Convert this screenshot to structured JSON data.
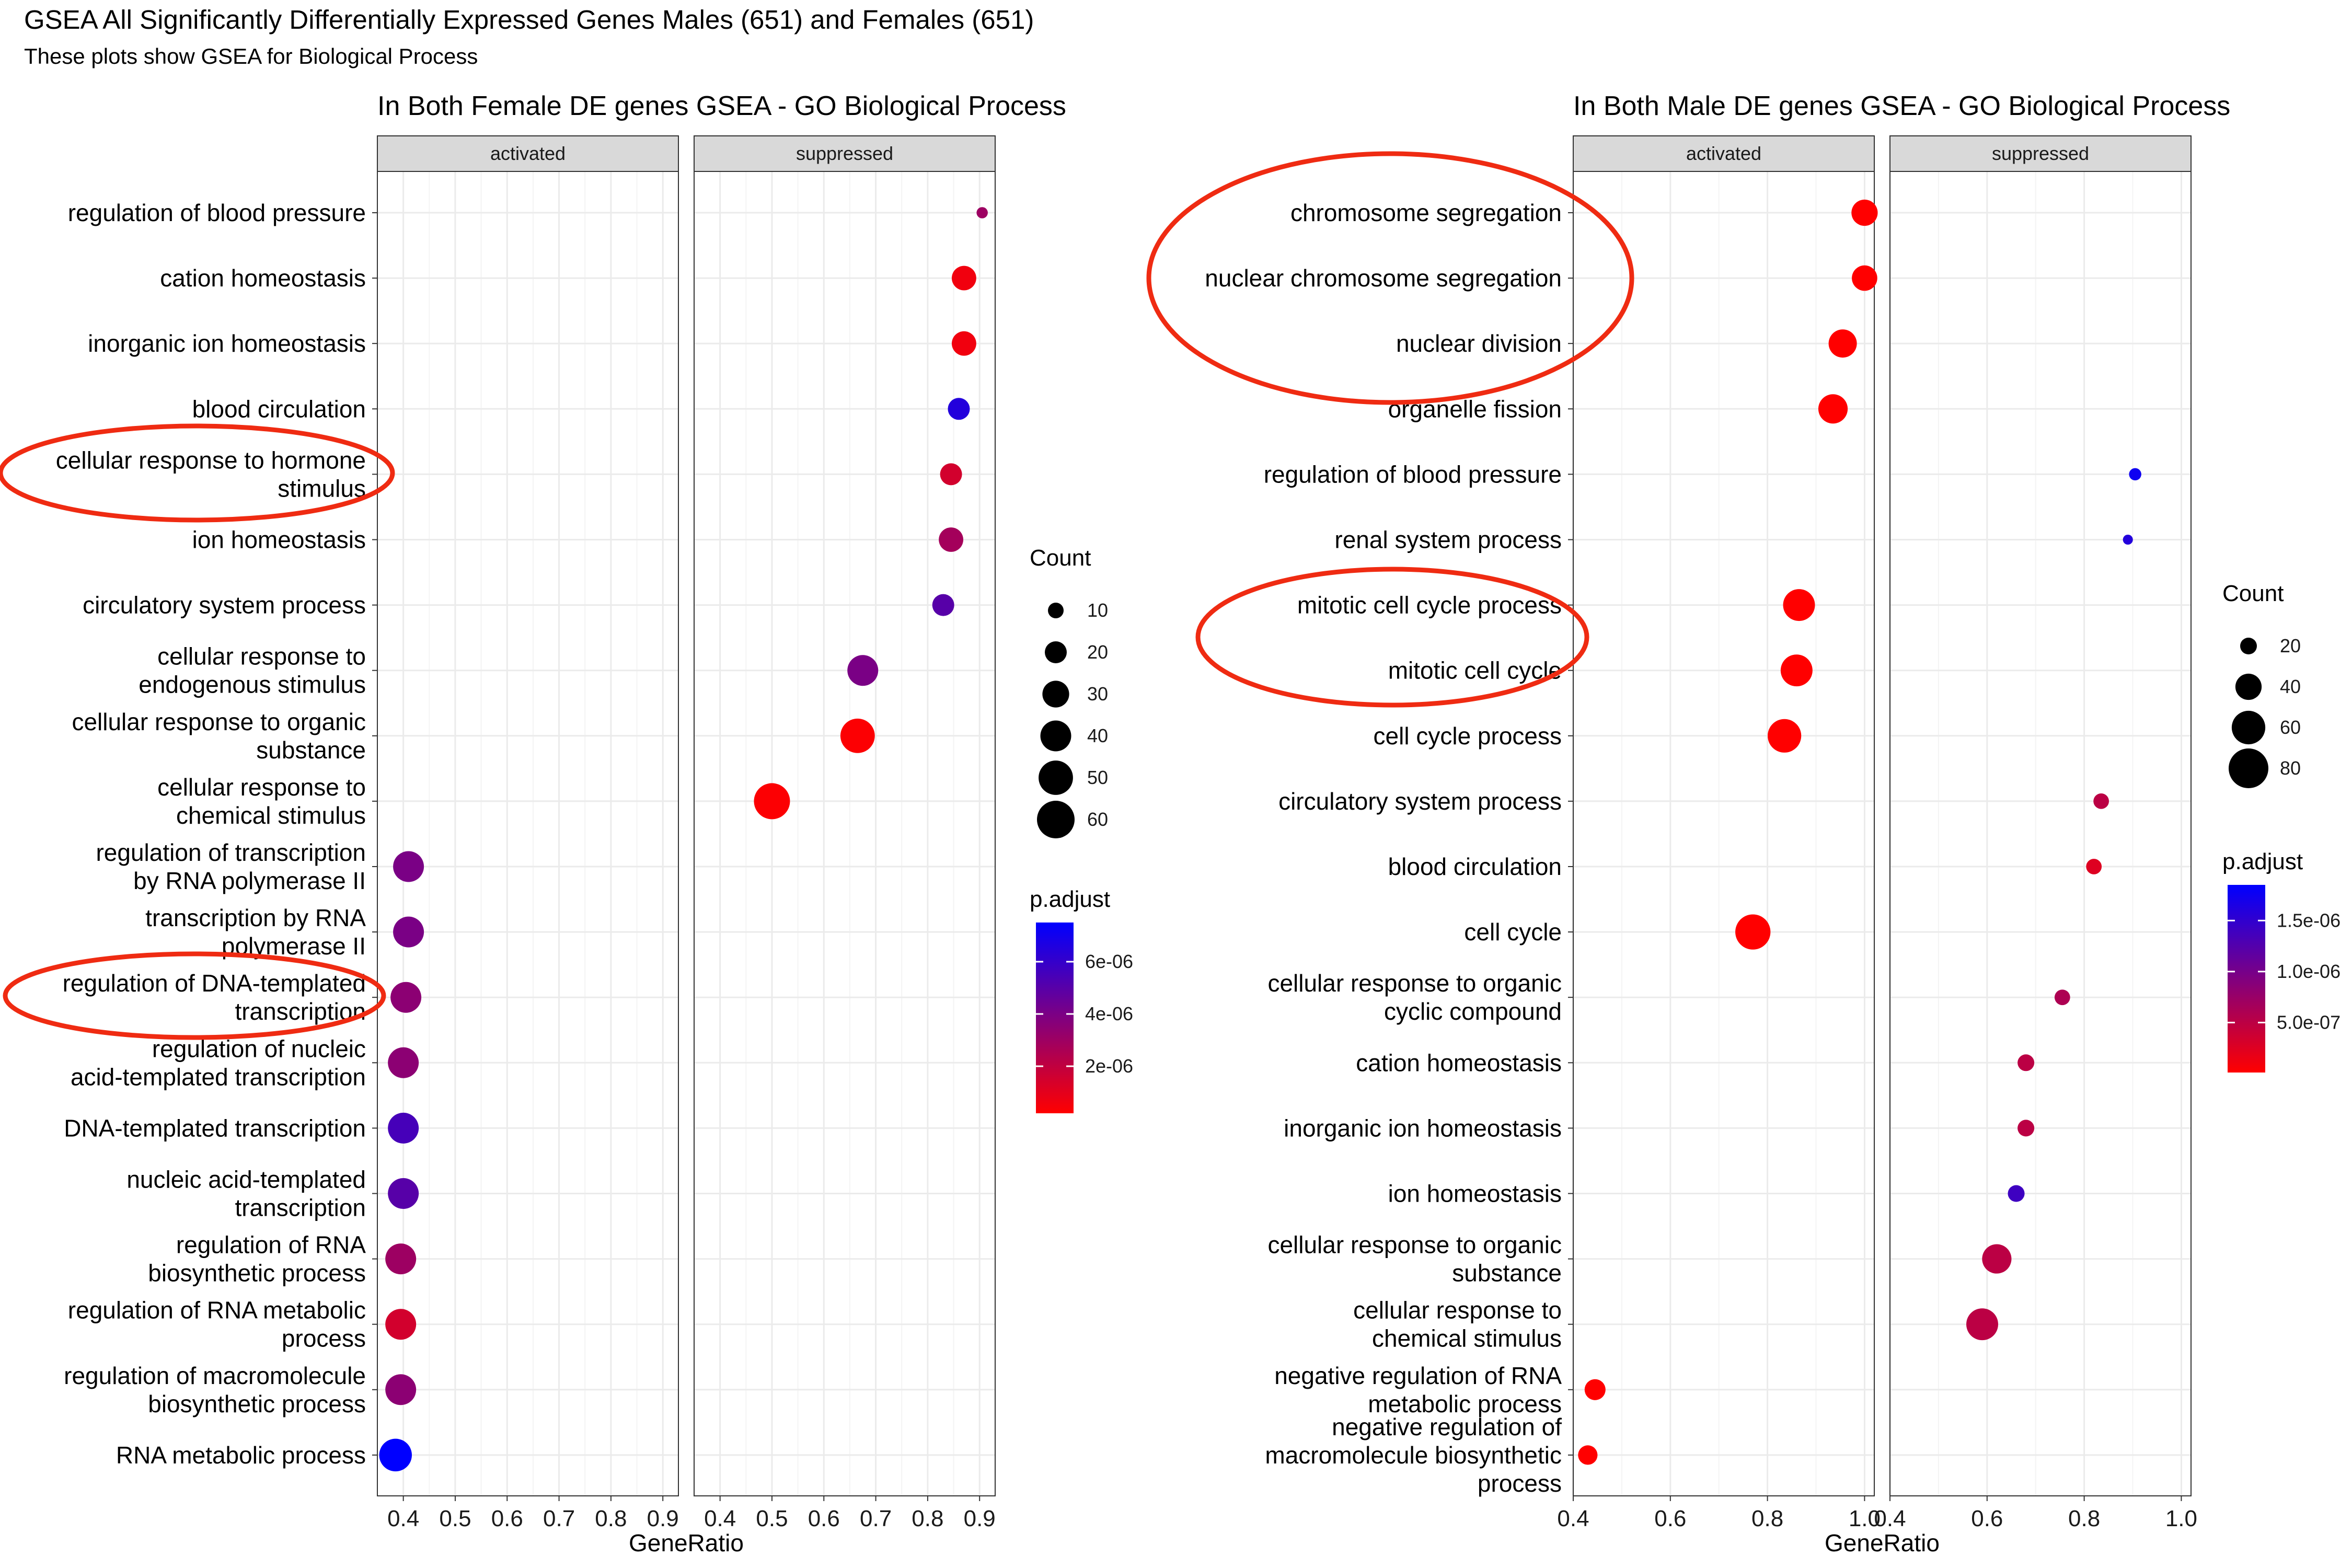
{
  "header": {
    "title": "GSEA All Significantly Differentially Expressed Genes Males (651) and Females (651)",
    "subtitle": "These plots show GSEA for Biological Process"
  },
  "chart_data": [
    {
      "type": "scatter",
      "title": "In Both Female DE genes GSEA - GO Biological Process",
      "xlabel": "GeneRatio",
      "ylabel": "",
      "facets": [
        "activated",
        "suppressed"
      ],
      "xlim": [
        0.35,
        0.93
      ],
      "xticks": [
        0.4,
        0.5,
        0.6,
        0.7,
        0.8,
        0.9
      ],
      "xtick_labels": [
        "0.4",
        "0.5",
        "0.6",
        "0.7",
        "0.8",
        "0.9"
      ],
      "grid": true,
      "legend_position": "right",
      "categories": [
        "regulation of blood pressure",
        "cation homeostasis",
        "inorganic ion homeostasis",
        "blood circulation",
        "cellular response to hormone\nstimulus",
        "ion homeostasis",
        "circulatory system process",
        "cellular response to\nendogenous stimulus",
        "cellular response to organic\nsubstance",
        "cellular response to\nchemical stimulus",
        "regulation of transcription\nby RNA polymerase II",
        "transcription by RNA\npolymerase II",
        "regulation of DNA-templated\ntranscription",
        "regulation of nucleic\nacid-templated transcription",
        "DNA-templated transcription",
        "nucleic acid-templated\ntranscription",
        "regulation of RNA\nbiosynthetic process",
        "regulation of RNA metabolic\nprocess",
        "regulation of macromolecule\nbiosynthetic process",
        "RNA metabolic process"
      ],
      "points": [
        {
          "term": 0,
          "facet": "suppressed",
          "x": 0.905,
          "count": 5,
          "p_adjust": 3e-06
        },
        {
          "term": 1,
          "facet": "suppressed",
          "x": 0.87,
          "count": 25,
          "p_adjust": 6e-07
        },
        {
          "term": 2,
          "facet": "suppressed",
          "x": 0.87,
          "count": 25,
          "p_adjust": 6e-07
        },
        {
          "term": 3,
          "facet": "suppressed",
          "x": 0.86,
          "count": 20,
          "p_adjust": 6.5e-06
        },
        {
          "term": 4,
          "facet": "suppressed",
          "x": 0.845,
          "count": 20,
          "p_adjust": 1.5e-06
        },
        {
          "term": 5,
          "facet": "suppressed",
          "x": 0.845,
          "count": 25,
          "p_adjust": 2.8e-06
        },
        {
          "term": 6,
          "facet": "suppressed",
          "x": 0.83,
          "count": 20,
          "p_adjust": 5e-06
        },
        {
          "term": 7,
          "facet": "suppressed",
          "x": 0.675,
          "count": 40,
          "p_adjust": 4e-06
        },
        {
          "term": 8,
          "facet": "suppressed",
          "x": 0.665,
          "count": 50,
          "p_adjust": 3e-07
        },
        {
          "term": 9,
          "facet": "suppressed",
          "x": 0.5,
          "count": 55,
          "p_adjust": 3e-07
        },
        {
          "term": 10,
          "facet": "activated",
          "x": 0.41,
          "count": 40,
          "p_adjust": 4e-06
        },
        {
          "term": 11,
          "facet": "activated",
          "x": 0.41,
          "count": 40,
          "p_adjust": 4e-06
        },
        {
          "term": 12,
          "facet": "activated",
          "x": 0.405,
          "count": 40,
          "p_adjust": 3.5e-06
        },
        {
          "term": 13,
          "facet": "activated",
          "x": 0.4,
          "count": 40,
          "p_adjust": 3.5e-06
        },
        {
          "term": 14,
          "facet": "activated",
          "x": 0.4,
          "count": 40,
          "p_adjust": 5.5e-06
        },
        {
          "term": 15,
          "facet": "activated",
          "x": 0.4,
          "count": 40,
          "p_adjust": 5e-06
        },
        {
          "term": 16,
          "facet": "activated",
          "x": 0.395,
          "count": 40,
          "p_adjust": 3e-06
        },
        {
          "term": 17,
          "facet": "activated",
          "x": 0.395,
          "count": 40,
          "p_adjust": 1.5e-06
        },
        {
          "term": 18,
          "facet": "activated",
          "x": 0.395,
          "count": 40,
          "p_adjust": 3.5e-06
        },
        {
          "term": 19,
          "facet": "activated",
          "x": 0.385,
          "count": 45,
          "p_adjust": 7.5e-06
        }
      ],
      "count_legend": {
        "title": "Count",
        "values": [
          10,
          20,
          30,
          40,
          50,
          60
        ],
        "labels": [
          "10",
          "20",
          "30",
          "40",
          "50",
          "60"
        ]
      },
      "color_legend": {
        "title": "p.adjust",
        "range": [
          2e-07,
          7.5e-06
        ],
        "breaks": [
          6e-06,
          4e-06,
          2e-06
        ],
        "labels": [
          "6e-06",
          "4e-06",
          "2e-06"
        ],
        "low_color": "#ff0000",
        "high_color": "#0000ff"
      },
      "highlight_ellipses": [
        {
          "term": 4,
          "color": "#ef2b12",
          "note": "circled label"
        },
        {
          "term": 12,
          "color": "#ef2b12",
          "note": "circled label"
        }
      ]
    },
    {
      "type": "scatter",
      "title": "In Both Male DE genes GSEA - GO Biological Process",
      "xlabel": "GeneRatio",
      "ylabel": "",
      "facets": [
        "activated",
        "suppressed"
      ],
      "xlim": [
        0.4,
        1.02
      ],
      "xticks": [
        0.4,
        0.6,
        0.8,
        1.0
      ],
      "xtick_labels": [
        "0.4",
        "0.6",
        "0.8",
        "1.0"
      ],
      "grid": true,
      "legend_position": "right",
      "categories": [
        "chromosome segregation",
        "nuclear chromosome segregation",
        "nuclear division",
        "organelle fission",
        "regulation of blood pressure",
        "renal system process",
        "mitotic cell cycle process",
        "mitotic cell cycle",
        "cell cycle process",
        "circulatory system process",
        "blood circulation",
        "cell cycle",
        "cellular response to organic\ncyclic compound",
        "cation homeostasis",
        "inorganic ion homeostasis",
        "ion homeostasis",
        "cellular response to organic\nsubstance",
        "cellular response to\nchemical stimulus",
        "negative regulation of RNA\nmetabolic process",
        "negative regulation of\nmacromolecule biosynthetic\nprocess"
      ],
      "points": [
        {
          "term": 0,
          "facet": "activated",
          "x": 1.0,
          "count": 40,
          "p_adjust": 1e-08
        },
        {
          "term": 1,
          "facet": "activated",
          "x": 1.0,
          "count": 38,
          "p_adjust": 1e-08
        },
        {
          "term": 2,
          "facet": "activated",
          "x": 0.955,
          "count": 45,
          "p_adjust": 1e-08
        },
        {
          "term": 3,
          "facet": "activated",
          "x": 0.935,
          "count": 48,
          "p_adjust": 1e-08
        },
        {
          "term": 4,
          "facet": "suppressed",
          "x": 0.905,
          "count": 13,
          "p_adjust": 1.75e-06
        },
        {
          "term": 5,
          "facet": "suppressed",
          "x": 0.89,
          "count": 10,
          "p_adjust": 1.6e-06
        },
        {
          "term": 6,
          "facet": "activated",
          "x": 0.865,
          "count": 55,
          "p_adjust": 1e-08
        },
        {
          "term": 7,
          "facet": "activated",
          "x": 0.86,
          "count": 55,
          "p_adjust": 1e-08
        },
        {
          "term": 8,
          "facet": "activated",
          "x": 0.835,
          "count": 60,
          "p_adjust": 1e-08
        },
        {
          "term": 9,
          "facet": "suppressed",
          "x": 0.835,
          "count": 18,
          "p_adjust": 5e-07
        },
        {
          "term": 10,
          "facet": "suppressed",
          "x": 0.82,
          "count": 18,
          "p_adjust": 2.5e-07
        },
        {
          "term": 11,
          "facet": "activated",
          "x": 0.77,
          "count": 65,
          "p_adjust": 1e-08
        },
        {
          "term": 12,
          "facet": "suppressed",
          "x": 0.755,
          "count": 18,
          "p_adjust": 6e-07
        },
        {
          "term": 13,
          "facet": "suppressed",
          "x": 0.68,
          "count": 20,
          "p_adjust": 5e-07
        },
        {
          "term": 14,
          "facet": "suppressed",
          "x": 0.68,
          "count": 20,
          "p_adjust": 5e-07
        },
        {
          "term": 15,
          "facet": "suppressed",
          "x": 0.66,
          "count": 20,
          "p_adjust": 1.4e-06
        },
        {
          "term": 16,
          "facet": "suppressed",
          "x": 0.62,
          "count": 48,
          "p_adjust": 5e-07
        },
        {
          "term": 17,
          "facet": "suppressed",
          "x": 0.59,
          "count": 55,
          "p_adjust": 5e-07
        },
        {
          "term": 18,
          "facet": "activated",
          "x": 0.445,
          "count": 28,
          "p_adjust": 1e-08
        },
        {
          "term": 19,
          "facet": "activated",
          "x": 0.43,
          "count": 25,
          "p_adjust": 1e-08
        }
      ],
      "count_legend": {
        "title": "Count",
        "values": [
          20,
          40,
          60,
          80
        ],
        "labels": [
          "20",
          "40",
          "60",
          "80"
        ]
      },
      "color_legend": {
        "title": "p.adjust",
        "range": [
          1e-08,
          1.85e-06
        ],
        "breaks": [
          1.5e-06,
          1e-06,
          5e-07
        ],
        "labels": [
          "1.5e-06",
          "1.0e-06",
          "5.0e-07"
        ],
        "low_color": "#ff0000",
        "high_color": "#0000ff"
      },
      "highlight_ellipses": [
        {
          "terms": [
            0,
            2
          ],
          "color": "#ef2b12",
          "note": "circled labels"
        },
        {
          "terms": [
            6,
            7
          ],
          "color": "#ef2b12",
          "note": "circled labels"
        }
      ]
    }
  ]
}
